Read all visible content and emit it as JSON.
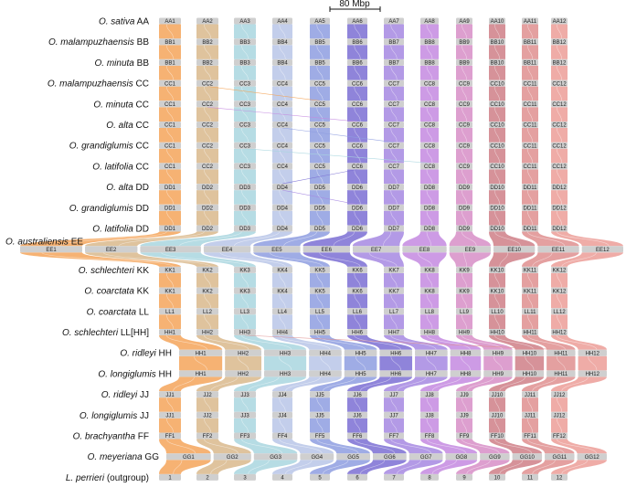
{
  "scale_bar": {
    "label": "80 Mbp"
  },
  "colors": {
    "chromosomes": [
      "#f4a55a",
      "#d9b98c",
      "#a9d6df",
      "#b9c6e8",
      "#8e9de0",
      "#7b6fd4",
      "#a688e2",
      "#c48ae0",
      "#d78ec7",
      "#cf7f87",
      "#df8f8f",
      "#ec9e98"
    ],
    "chromosome_bar": "#cfcfcf"
  },
  "genomes": [
    {
      "species": "O. sativa",
      "genome": "AA",
      "chromosomes": [
        "AA1",
        "AA2",
        "AA3",
        "AA4",
        "AA5",
        "AA6",
        "AA7",
        "AA8",
        "AA9",
        "AA10",
        "AA11",
        "AA12"
      ]
    },
    {
      "species": "O. malampuzhaensis",
      "genome": "BB",
      "chromosomes": [
        "BB1",
        "BB2",
        "BB3",
        "BB4",
        "BB5",
        "BB6",
        "BB7",
        "BB8",
        "BB9",
        "BB10",
        "BB11",
        "BB12"
      ]
    },
    {
      "species": "O. minuta",
      "genome": "BB",
      "chromosomes": [
        "BB1",
        "BB2",
        "BB3",
        "BB4",
        "BB5",
        "BB6",
        "BB7",
        "BB8",
        "BB9",
        "BB10",
        "BB11",
        "BB12"
      ]
    },
    {
      "species": "O. malampuzhaensis",
      "genome": "CC",
      "chromosomes": [
        "CC1",
        "CC2",
        "CC3",
        "CC4",
        "CC5",
        "CC6",
        "CC7",
        "CC8",
        "CC9",
        "CC10",
        "CC11",
        "CC12"
      ]
    },
    {
      "species": "O. minuta",
      "genome": "CC",
      "chromosomes": [
        "CC1",
        "CC2",
        "CC3",
        "CC4",
        "CC5",
        "CC6",
        "CC7",
        "CC8",
        "CC9",
        "CC10",
        "CC11",
        "CC12"
      ]
    },
    {
      "species": "O. alta",
      "genome": "CC",
      "chromosomes": [
        "CC1",
        "CC2",
        "CC3",
        "CC4",
        "CC5",
        "CC6",
        "CC7",
        "CC8",
        "CC9",
        "CC10",
        "CC11",
        "CC12"
      ]
    },
    {
      "species": "O. grandiglumis",
      "genome": "CC",
      "chromosomes": [
        "CC1",
        "CC2",
        "CC3",
        "CC4",
        "CC5",
        "CC6",
        "CC7",
        "CC8",
        "CC9",
        "CC10",
        "CC11",
        "CC12"
      ]
    },
    {
      "species": "O. latifolia",
      "genome": "CC",
      "chromosomes": [
        "CC1",
        "CC2",
        "CC3",
        "CC4",
        "CC5",
        "CC6",
        "CC7",
        "CC8",
        "CC9",
        "CC10",
        "CC11",
        "CC12"
      ]
    },
    {
      "species": "O. alta",
      "genome": "DD",
      "chromosomes": [
        "DD1",
        "DD2",
        "DD3",
        "DD4",
        "DD5",
        "DD6",
        "DD7",
        "DD8",
        "DD9",
        "DD10",
        "DD11",
        "DD12"
      ]
    },
    {
      "species": "O. grandiglumis",
      "genome": "DD",
      "chromosomes": [
        "DD1",
        "DD2",
        "DD3",
        "DD4",
        "DD5",
        "DD6",
        "DD7",
        "DD8",
        "DD9",
        "DD10",
        "DD11",
        "DD12"
      ]
    },
    {
      "species": "O. latifolia",
      "genome": "DD",
      "chromosomes": [
        "DD1",
        "DD2",
        "DD3",
        "DD4",
        "DD5",
        "DD6",
        "DD7",
        "DD8",
        "DD9",
        "DD10",
        "DD11",
        "DD12"
      ]
    },
    {
      "species": "O. australiensis",
      "genome": "EE",
      "chromosomes": [
        "EE1",
        "EE2",
        "EE3",
        "EE4",
        "EE5",
        "EE6",
        "EE7",
        "EE8",
        "EE9",
        "EE10",
        "EE11",
        "EE12"
      ]
    },
    {
      "species": "O. schlechteri",
      "genome": "KK",
      "chromosomes": [
        "KK1",
        "KK2",
        "KK3",
        "KK4",
        "KK5",
        "KK6",
        "KK7",
        "KK8",
        "KK9",
        "KK10",
        "KK11",
        "KK12"
      ]
    },
    {
      "species": "O. coarctata",
      "genome": "KK",
      "chromosomes": [
        "KK1",
        "KK2",
        "KK3",
        "KK4",
        "KK5",
        "KK6",
        "KK7",
        "KK8",
        "KK9",
        "KK10",
        "KK11",
        "KK12"
      ]
    },
    {
      "species": "O. coarctata",
      "genome": "LL",
      "chromosomes": [
        "LL1",
        "LL2",
        "LL3",
        "LL4",
        "LL5",
        "LL6",
        "LL7",
        "LL8",
        "LL9",
        "LL10",
        "LL11",
        "LL12"
      ]
    },
    {
      "species": "O. schlechteri",
      "genome": "LL[HH]",
      "chromosomes": [
        "HH1",
        "HH2",
        "HH3",
        "HH4",
        "HH5",
        "HH6",
        "HH7",
        "HH8",
        "HH9",
        "HH10",
        "HH11",
        "HH12"
      ]
    },
    {
      "species": "O. ridleyi",
      "genome": "HH",
      "chromosomes": [
        "HH1",
        "HH2",
        "HH3",
        "HH4",
        "HH5",
        "HH6",
        "HH7",
        "HH8",
        "HH9",
        "HH10",
        "HH11",
        "HH12"
      ]
    },
    {
      "species": "O. longiglumis",
      "genome": "HH",
      "chromosomes": [
        "HH1",
        "HH2",
        "HH3",
        "HH4",
        "HH5",
        "HH6",
        "HH7",
        "HH8",
        "HH9",
        "HH10",
        "HH11",
        "HH12"
      ]
    },
    {
      "species": "O. ridleyi",
      "genome": "JJ",
      "chromosomes": [
        "JJ1",
        "JJ2",
        "JJ3",
        "JJ4",
        "JJ5",
        "JJ6",
        "JJ7",
        "JJ8",
        "JJ9",
        "JJ10",
        "JJ11",
        "JJ12"
      ]
    },
    {
      "species": "O. longiglumis",
      "genome": "JJ",
      "chromosomes": [
        "JJ1",
        "JJ2",
        "JJ3",
        "JJ4",
        "JJ5",
        "JJ6",
        "JJ7",
        "JJ8",
        "JJ9",
        "JJ10",
        "JJ11",
        "JJ12"
      ]
    },
    {
      "species": "O. brachyantha",
      "genome": "FF",
      "chromosomes": [
        "FF1",
        "FF2",
        "FF3",
        "FF4",
        "FF5",
        "FF6",
        "FF7",
        "FF8",
        "FF9",
        "FF10",
        "FF11",
        "FF12"
      ]
    },
    {
      "species": "O. meyeriana",
      "genome": "GG",
      "chromosomes": [
        "GG1",
        "GG2",
        "GG3",
        "GG4",
        "GG5",
        "GG6",
        "GG7",
        "GG8",
        "GG9",
        "GG10",
        "GG11",
        "GG12"
      ]
    },
    {
      "species": "L. perrieri",
      "genome": "(outgroup)",
      "chromosomes": [
        "1",
        "2",
        "3",
        "4",
        "5",
        "6",
        "7",
        "8",
        "9",
        "10",
        "11",
        "12"
      ]
    }
  ]
}
